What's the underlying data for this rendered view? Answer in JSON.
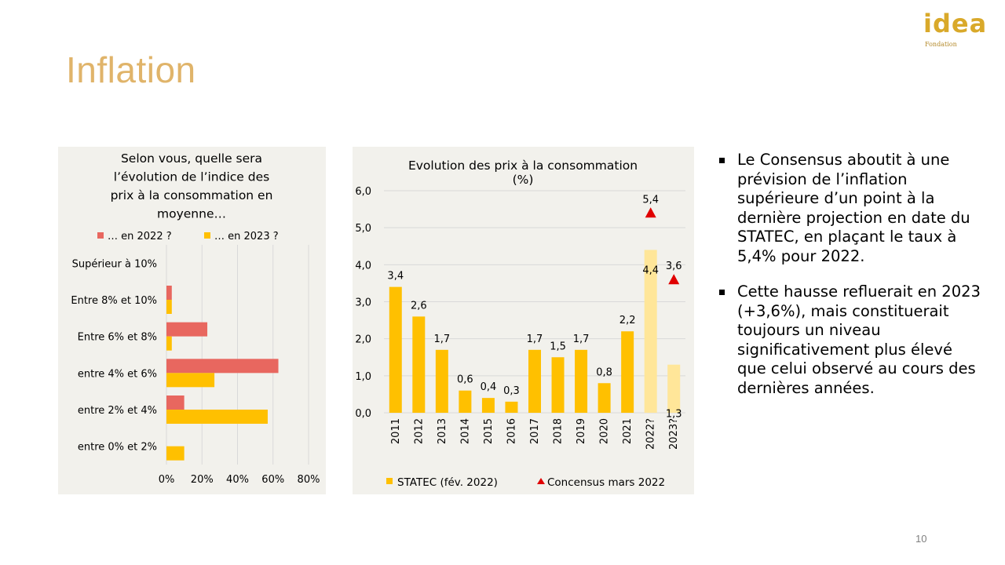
{
  "slide": {
    "title": "Inflation",
    "page_number": "10"
  },
  "logo": {
    "text": "idea",
    "subtext": "Fondation"
  },
  "colors": {
    "title": "#e0b46a",
    "series_2022": "#e8675f",
    "series_2023": "#ffc000",
    "projection": "#ffe699",
    "consensus": "#e00000",
    "panel_bg": "#f2f1ec"
  },
  "bullets": [
    "Le Consensus aboutit à une prévision de l’inflation supérieure d’un point à la dernière projection en date du STATEC, en plaçant le taux à 5,4% pour 2022.",
    "Cette hausse refluerait en 2023 (+3,6%), mais constituerait toujours un niveau significativement plus élevé que celui observé au cours des dernières années."
  ],
  "chart_data": [
    {
      "type": "bar",
      "orientation": "horizontal",
      "title_lines": [
        "Selon vous, quelle sera",
        "l’évolution de l’indice des",
        "prix à la consommation en",
        "moyenne…"
      ],
      "categories": [
        "Supérieur à 10%",
        "Entre 8% et 10%",
        "Entre 6% et 8%",
        "entre 4% et 6%",
        "entre 2% et 4%",
        "entre 0% et 2%"
      ],
      "series": [
        {
          "name": "… en 2022 ?",
          "color": "#e8675f",
          "values": [
            0,
            3,
            23,
            63,
            10,
            0
          ]
        },
        {
          "name": "… en 2023 ?",
          "color": "#ffc000",
          "values": [
            0,
            3,
            3,
            27,
            57,
            10
          ]
        }
      ],
      "xlim": [
        0,
        80
      ],
      "xticks": [
        "0%",
        "20%",
        "40%",
        "60%",
        "80%"
      ],
      "grid": true,
      "legend": "top"
    },
    {
      "type": "bar",
      "title_lines": [
        "Evolution des prix à la consommation",
        "(%)"
      ],
      "categories": [
        "2011",
        "2012",
        "2013",
        "2014",
        "2015",
        "2016",
        "2017",
        "2018",
        "2019",
        "2020",
        "2021",
        "2022?",
        "2023?"
      ],
      "series": [
        {
          "name": "STATEC (fév. 2022)",
          "color": "#ffc000",
          "values": [
            3.4,
            2.6,
            1.7,
            0.6,
            0.4,
            0.3,
            1.7,
            1.5,
            1.7,
            0.8,
            2.2,
            4.4,
            1.3
          ],
          "labels": [
            "3,4",
            "2,6",
            "1,7",
            "0,6",
            "0,4",
            "0,3",
            "1,7",
            "1,5",
            "1,7",
            "0,8",
            "2,2",
            "4,4",
            "1,3"
          ],
          "projection_from_index": 11
        },
        {
          "name": "Concensus mars 2022",
          "color": "#e00000",
          "marker": "triangle",
          "points": [
            {
              "category": "2022?",
              "value": 5.4,
              "label": "5,4"
            },
            {
              "category": "2023?",
              "value": 3.6,
              "label": "3,6"
            }
          ]
        }
      ],
      "ylim": [
        0,
        6
      ],
      "yticks": [
        "0,0",
        "1,0",
        "2,0",
        "3,0",
        "4,0",
        "5,0",
        "6,0"
      ],
      "grid": true,
      "legend": "bottom"
    }
  ]
}
